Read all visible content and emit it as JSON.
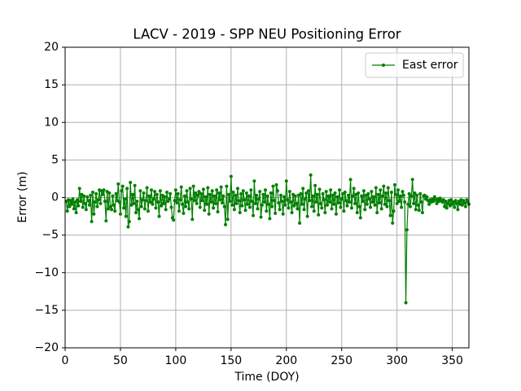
{
  "chart_data": {
    "type": "line",
    "title": "LACV - 2019 - SPP NEU Positioning Error",
    "xlabel": "Time (DOY)",
    "ylabel": "Error (m)",
    "xlim": [
      0,
      365
    ],
    "xticks": [
      0,
      50,
      100,
      150,
      200,
      250,
      300,
      350
    ],
    "ylim": [
      -20,
      20
    ],
    "yticks": [
      {
        "value": -20,
        "label": "−20"
      },
      {
        "value": -15,
        "label": "−15"
      },
      {
        "value": -10,
        "label": "−10"
      },
      {
        "value": -5,
        "label": "−5"
      },
      0,
      5,
      10,
      15,
      20
    ],
    "grid": true,
    "legend": "upper right",
    "x": [
      1,
      2,
      3,
      4,
      5,
      6,
      7,
      8,
      9,
      10,
      11,
      12,
      13,
      14,
      15,
      16,
      17,
      18,
      19,
      20,
      21,
      22,
      23,
      24,
      25,
      26,
      27,
      28,
      29,
      30,
      31,
      32,
      33,
      34,
      35,
      36,
      37,
      38,
      39,
      40,
      41,
      42,
      43,
      44,
      45,
      46,
      47,
      48,
      49,
      50,
      51,
      52,
      53,
      54,
      55,
      56,
      57,
      58,
      59,
      60,
      61,
      62,
      63,
      64,
      65,
      66,
      67,
      68,
      69,
      70,
      71,
      72,
      73,
      74,
      75,
      76,
      77,
      78,
      79,
      80,
      81,
      82,
      83,
      84,
      85,
      86,
      87,
      88,
      89,
      90,
      91,
      92,
      93,
      94,
      95,
      96,
      97,
      98,
      99,
      100,
      101,
      102,
      103,
      104,
      105,
      106,
      107,
      108,
      109,
      110,
      111,
      112,
      113,
      114,
      115,
      116,
      117,
      118,
      119,
      120,
      121,
      122,
      123,
      124,
      125,
      126,
      127,
      128,
      129,
      130,
      131,
      132,
      133,
      134,
      135,
      136,
      137,
      138,
      139,
      140,
      141,
      142,
      143,
      144,
      145,
      146,
      147,
      148,
      149,
      150,
      151,
      152,
      153,
      154,
      155,
      156,
      157,
      158,
      159,
      160,
      161,
      162,
      163,
      164,
      165,
      166,
      167,
      168,
      169,
      170,
      171,
      172,
      173,
      174,
      175,
      176,
      177,
      178,
      179,
      180,
      181,
      182,
      183,
      184,
      185,
      186,
      187,
      188,
      189,
      190,
      191,
      192,
      193,
      194,
      195,
      196,
      197,
      198,
      199,
      200,
      201,
      202,
      203,
      204,
      205,
      206,
      207,
      208,
      209,
      210,
      211,
      212,
      213,
      214,
      215,
      216,
      217,
      218,
      219,
      220,
      221,
      222,
      223,
      224,
      225,
      226,
      227,
      228,
      229,
      230,
      231,
      232,
      233,
      234,
      235,
      236,
      237,
      238,
      239,
      240,
      241,
      242,
      243,
      244,
      245,
      246,
      247,
      248,
      249,
      250,
      251,
      252,
      253,
      254,
      255,
      256,
      257,
      258,
      259,
      260,
      261,
      262,
      263,
      264,
      265,
      266,
      267,
      268,
      269,
      270,
      271,
      272,
      273,
      274,
      275,
      276,
      277,
      278,
      279,
      280,
      281,
      282,
      283,
      284,
      285,
      286,
      287,
      288,
      289,
      290,
      291,
      292,
      293,
      294,
      295,
      296,
      297,
      298,
      299,
      300,
      301,
      302,
      303,
      304,
      305,
      306,
      307,
      308,
      309,
      310,
      311,
      312,
      313,
      314,
      315,
      316,
      317,
      318,
      319,
      320,
      321,
      322,
      323,
      324,
      325,
      326,
      327,
      328,
      329,
      330,
      331,
      332,
      333,
      334,
      335,
      336,
      337,
      338,
      339,
      340,
      341,
      342,
      343,
      344,
      345,
      346,
      347,
      348,
      349,
      350,
      351,
      352,
      353,
      354,
      355,
      356,
      357,
      358,
      359,
      360,
      361,
      362,
      363,
      364,
      365
    ],
    "series": [
      {
        "name": "East error",
        "color": "#008000",
        "values": [
          -0.5,
          -1.8,
          -0.3,
          -1.2,
          -0.4,
          -0.9,
          -0.2,
          -1.5,
          -0.6,
          -2.0,
          -0.3,
          -1.1,
          1.2,
          -0.5,
          0.4,
          -1.3,
          0.2,
          -0.8,
          -1.6,
          0.1,
          -0.4,
          -1.0,
          0.3,
          -3.2,
          0.7,
          -2.2,
          -0.6,
          0.5,
          -1.2,
          -0.3,
          1.0,
          -0.8,
          0.9,
          0.4,
          1.0,
          -0.5,
          -3.1,
          0.8,
          -1.5,
          0.6,
          -1.2,
          -1.6,
          0.2,
          -1.0,
          -1.8,
          0.5,
          -0.4,
          1.8,
          -0.6,
          -2.2,
          0.9,
          1.5,
          -1.4,
          -0.2,
          -2.5,
          1.2,
          -3.9,
          -3.2,
          2.0,
          -1.0,
          0.4,
          -0.8,
          1.6,
          -2.0,
          -0.5,
          -1.6,
          -2.8,
          0.9,
          -1.2,
          -0.3,
          0.6,
          -1.5,
          -0.4,
          1.3,
          -1.8,
          0.2,
          -0.6,
          1.0,
          -0.9,
          -0.2,
          0.8,
          -1.4,
          0.4,
          -0.6,
          -2.5,
          0.9,
          -1.1,
          0.3,
          -0.8,
          0.1,
          -1.6,
          0.7,
          -0.5,
          -0.2,
          0.5,
          -1.3,
          -2.7,
          -3.0,
          -0.4,
          1.0,
          -0.7,
          0.5,
          -1.8,
          -0.3,
          1.4,
          -0.9,
          -2.1,
          0.2,
          -1.2,
          0.9,
          -0.6,
          -1.5,
          1.2,
          -0.2,
          -2.9,
          1.5,
          -0.4,
          0.6,
          -0.8,
          0.3,
          0.8,
          -1.3,
          0.5,
          -0.4,
          1.1,
          -1.7,
          0.1,
          -0.9,
          1.3,
          -2.2,
          0.4,
          -0.6,
          0.9,
          -1.4,
          0.2,
          -0.8,
          1.0,
          -1.9,
          0.6,
          -0.3,
          1.4,
          -0.7,
          0.2,
          -1.2,
          -3.6,
          1.5,
          -2.9,
          0.4,
          -0.5,
          2.8,
          -1.0,
          0.7,
          -1.6,
          0.3,
          -0.8,
          1.2,
          -0.4,
          -2.0,
          0.5,
          -1.1,
          0.9,
          -0.3,
          -1.7,
          0.6,
          -0.9,
          0.2,
          -1.3,
          1.0,
          -0.5,
          -2.4,
          2.2,
          -0.8,
          0.3,
          -1.5,
          -0.2,
          0.8,
          -2.6,
          -1.0,
          0.4,
          -0.6,
          1.0,
          -1.8,
          0.2,
          -0.9,
          -2.8,
          0.6,
          -1.2,
          1.5,
          -0.4,
          -2.1,
          1.7,
          0.9,
          -0.7,
          -1.6,
          0.3,
          -0.5,
          -2.2,
          0.1,
          -1.0,
          2.2,
          -0.3,
          -1.4,
          0.8,
          -0.6,
          -2.0,
          0.4,
          -1.1,
          0.2,
          -0.8,
          -1.5,
          0.3,
          -3.4,
          0.5,
          -0.9,
          1.2,
          -1.6,
          -0.2,
          0.6,
          -2.5,
          0.9,
          -0.4,
          3.0,
          -1.2,
          0.2,
          -1.8,
          1.6,
          -0.6,
          0.4,
          -2.3,
          1.1,
          -0.8,
          -1.4,
          0.5,
          -0.3,
          -2.0,
          0.8,
          -1.0,
          0.2,
          -0.6,
          1.0,
          -1.5,
          0.3,
          -0.9,
          0.6,
          -2.2,
          0.1,
          -0.7,
          1.0,
          -1.3,
          -0.2,
          0.5,
          -1.8,
          0.7,
          -0.4,
          -1.1,
          0.3,
          -0.6,
          2.4,
          -1.4,
          0.2,
          1.2,
          -0.8,
          0.4,
          -2.0,
          0.6,
          -1.2,
          -2.7,
          0.2,
          -0.5,
          0.9,
          -1.6,
          0.3,
          -0.9,
          0.5,
          -0.2,
          -1.3,
          0.8,
          -0.6,
          0.1,
          -1.0,
          1.3,
          -2.0,
          0.4,
          -0.7,
          1.0,
          -1.5,
          0.2,
          1.5,
          -0.9,
          0.6,
          -1.2,
          1.3,
          -0.4,
          -2.4,
          0.7,
          -3.4,
          -1.8,
          1.7,
          0.4,
          -0.8,
          1.0,
          -0.5,
          0.2,
          -1.3,
          0.8,
          0.3,
          -0.6,
          -14.0,
          -4.3,
          -0.9,
          0.5,
          -1.2,
          0.2,
          2.4,
          -0.8,
          0.6,
          -1.6,
          0.3,
          -1.0,
          -1.7,
          0.5,
          -0.6,
          -2.0,
          0.2,
          0.3,
          -0.2,
          0.1,
          -0.4,
          -0.9,
          -0.3,
          -0.6,
          -0.2,
          -0.5,
          0.1,
          -0.3,
          -0.8,
          -0.2,
          -0.5,
          -0.1,
          -0.4,
          -0.6,
          -0.3,
          -1.2,
          -0.5,
          -1.4,
          -0.8,
          -0.4,
          -1.1,
          -0.3,
          -0.9,
          -0.6,
          -1.3,
          -0.4,
          -0.8,
          -1.6,
          -0.5,
          -0.9,
          -0.3,
          -1.0,
          -0.4,
          -0.7,
          -1.2,
          -0.3,
          -0.6,
          -0.9
        ]
      }
    ]
  }
}
